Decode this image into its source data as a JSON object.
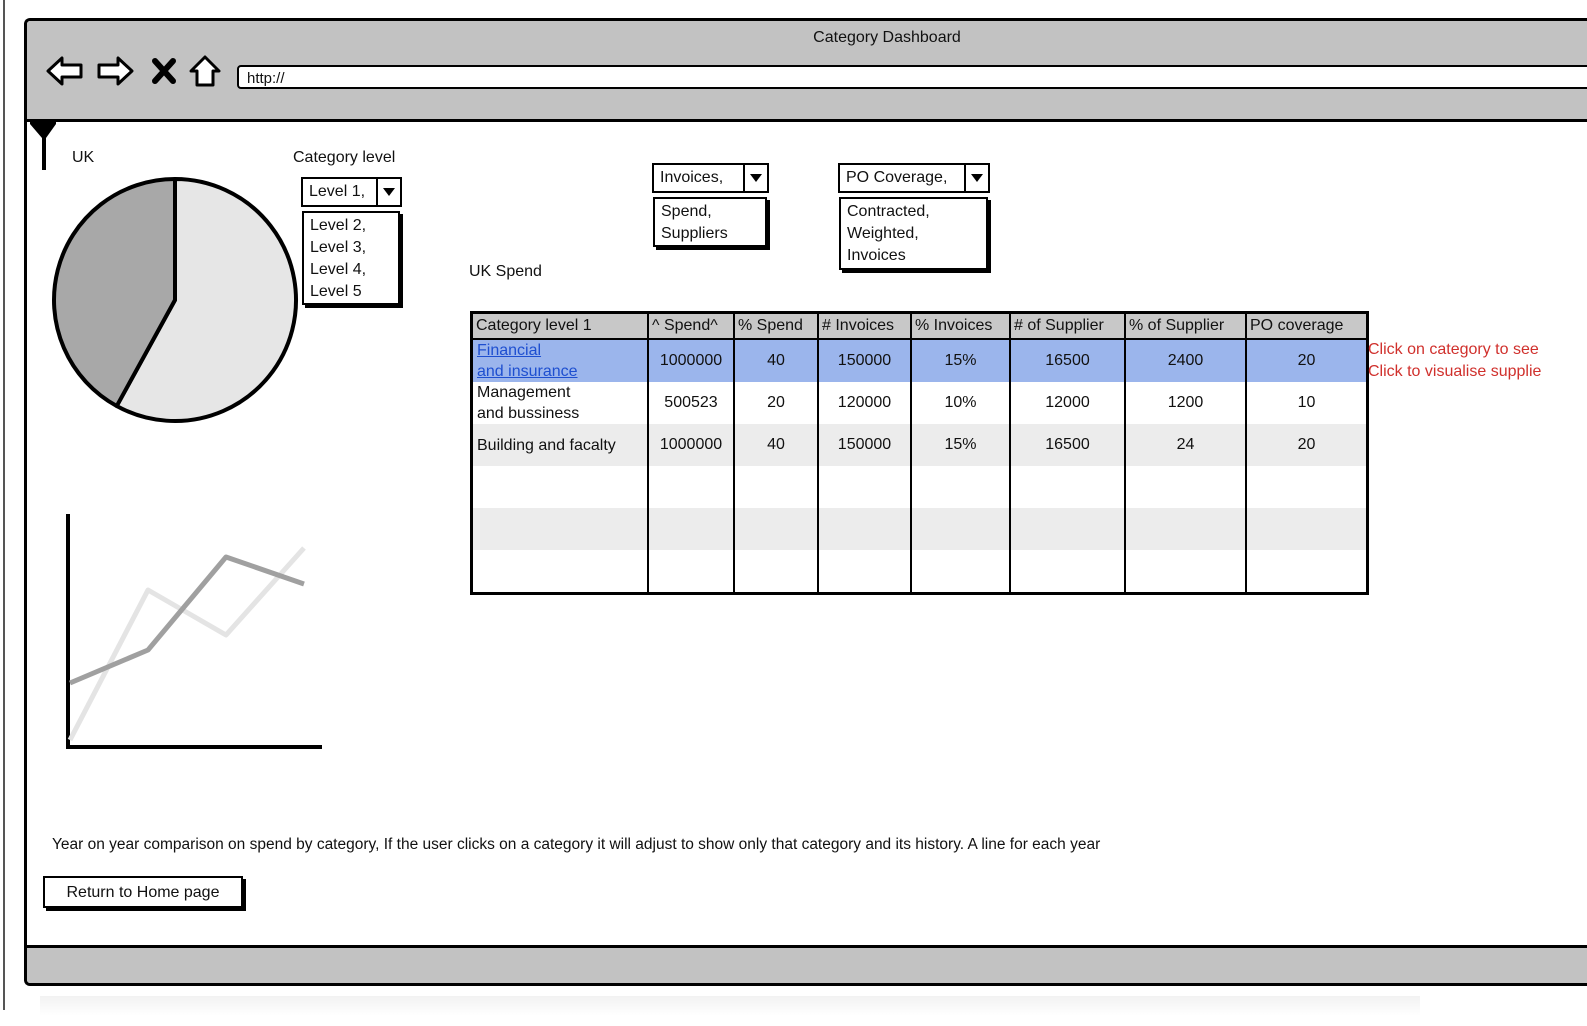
{
  "window": {
    "title": "Category Dashboard",
    "address": "http://"
  },
  "filters": {
    "region": "UK",
    "category_level_label": "Category level",
    "category_level_selected": "Level 1,",
    "category_level_options": [
      "Level 2,",
      "Level 3,",
      "Level 4,",
      "Level 5"
    ],
    "metric_selected": "Invoices,",
    "metric_options": [
      "Spend,",
      "Suppliers"
    ],
    "coverage_selected": "PO Coverage,",
    "coverage_options": [
      "Contracted,",
      "Weighted,",
      "Invoices"
    ]
  },
  "table": {
    "title": "UK Spend",
    "headers": [
      "Category level 1",
      "^ Spend^",
      "% Spend",
      "# Invoices",
      "% Invoices",
      "# of Supplier",
      "% of Supplier",
      "PO coverage"
    ],
    "rows": [
      {
        "cat1": "Financial",
        "cat2": "and insurance",
        "spend": "1000000",
        "pct_spend": "40",
        "invoices": "150000",
        "pct_invoices": "15%",
        "suppliers": "16500",
        "pct_suppliers": "2400",
        "po": "20"
      },
      {
        "cat1": "Management",
        "cat2": "and bussiness",
        "spend": "500523",
        "pct_spend": "20",
        "invoices": "120000",
        "pct_invoices": "10%",
        "suppliers": "12000",
        "pct_suppliers": "1200",
        "po": "10"
      },
      {
        "cat1": "Building and facalty",
        "cat2": "",
        "spend": "1000000",
        "pct_spend": "40",
        "invoices": "150000",
        "pct_invoices": "15%",
        "suppliers": "16500",
        "pct_suppliers": "24",
        "po": "20"
      }
    ]
  },
  "notes": {
    "line1": "Click on category to see",
    "line2": "Click to visualise supplie"
  },
  "description": "Year on year comparison on spend by category, If the user clicks on a category it will adjust to show only that category and its history. A line for each year",
  "buttons": {
    "home": "Return to Home page"
  },
  "colors": {
    "chrome": "#c2c2c2",
    "selected_row": "#9bb5ec",
    "header": "#c8c8c8",
    "note": "#d0302c",
    "link": "#1e4fd0"
  },
  "chart_data": [
    {
      "type": "pie",
      "values": [
        58,
        42
      ],
      "colors": [
        "#e6e6e6",
        "#a8a8a8"
      ]
    },
    {
      "type": "line",
      "x": [
        0,
        1,
        2,
        3
      ],
      "series": [
        {
          "values": [
            2.1,
            3.2,
            6.3,
            5.4
          ],
          "color": "#a0a0a0"
        },
        {
          "values": [
            0.2,
            5.2,
            3.7,
            6.6
          ],
          "color": "#e4e4e4"
        }
      ]
    }
  ]
}
